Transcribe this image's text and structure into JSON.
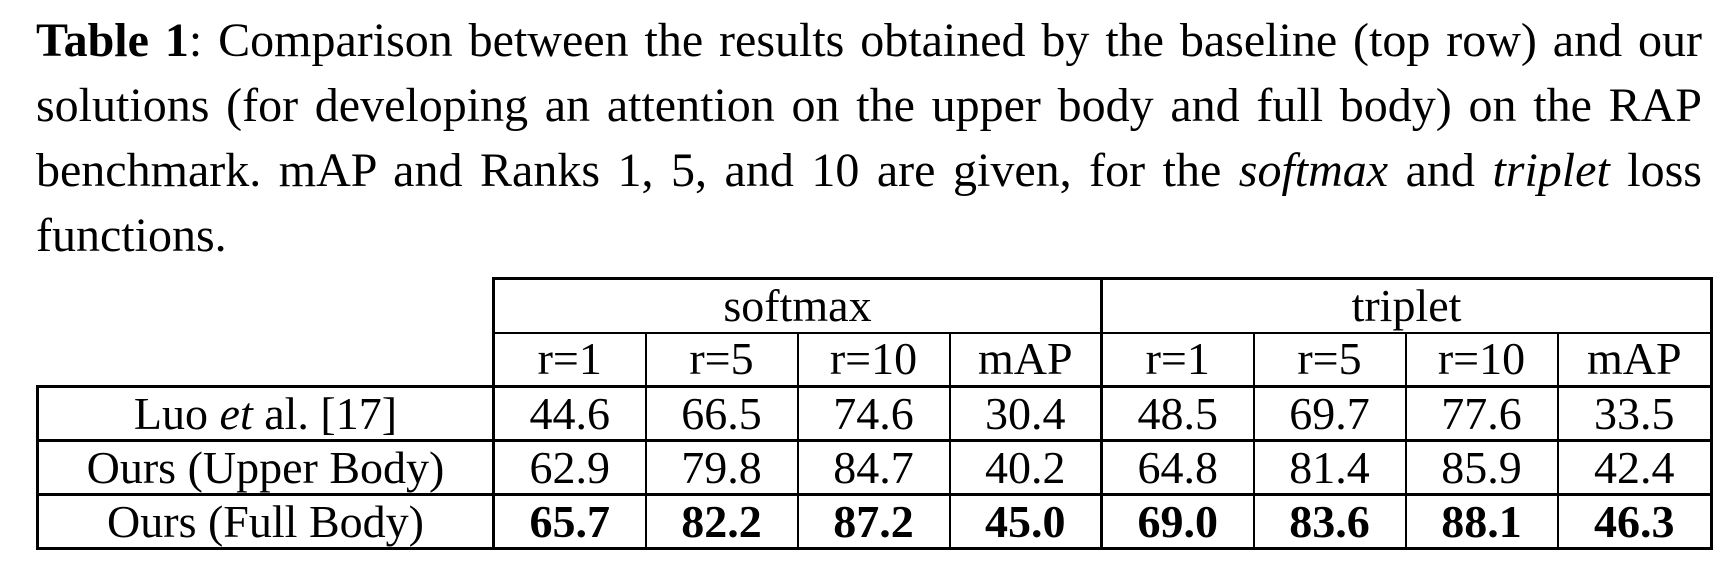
{
  "caption": {
    "label": "Table 1",
    "colon": ":",
    "text_before_softmax": " Comparison between the results obtained by the baseline (top row) and our solutions (for developing an attention on the upper body and full body) on the RAP benchmark.  mAP and Ranks 1, 5, and 10 are given, for the ",
    "softmax": "softmax",
    "and": " and ",
    "triplet": "triplet",
    "text_after": " loss functions."
  },
  "table": {
    "groups": [
      "softmax",
      "triplet"
    ],
    "columns": [
      "r=1",
      "r=5",
      "r=10",
      "mAP",
      "r=1",
      "r=5",
      "r=10",
      "mAP"
    ],
    "rows": [
      {
        "method_prefix": "Luo ",
        "method_italic": "et",
        "method_suffix": " al. [17]",
        "values": [
          "44.6",
          "66.5",
          "74.6",
          "30.4",
          "48.5",
          "69.7",
          "77.6",
          "33.5"
        ],
        "bold": false
      },
      {
        "method_prefix": "Ours (Upper Body)",
        "method_italic": "",
        "method_suffix": "",
        "values": [
          "62.9",
          "79.8",
          "84.7",
          "40.2",
          "64.8",
          "81.4",
          "85.9",
          "42.4"
        ],
        "bold": false
      },
      {
        "method_prefix": "Ours (Full Body)",
        "method_italic": "",
        "method_suffix": "",
        "values": [
          "65.7",
          "82.2",
          "87.2",
          "45.0",
          "69.0",
          "83.6",
          "88.1",
          "46.3"
        ],
        "bold": true
      }
    ]
  }
}
